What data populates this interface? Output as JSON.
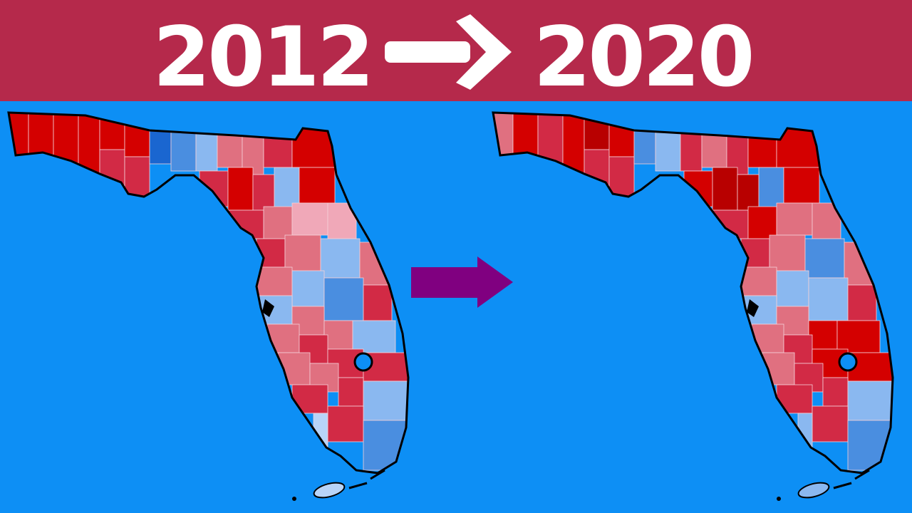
{
  "header": {
    "left_year": "2012",
    "right_year": "2020"
  }
}
